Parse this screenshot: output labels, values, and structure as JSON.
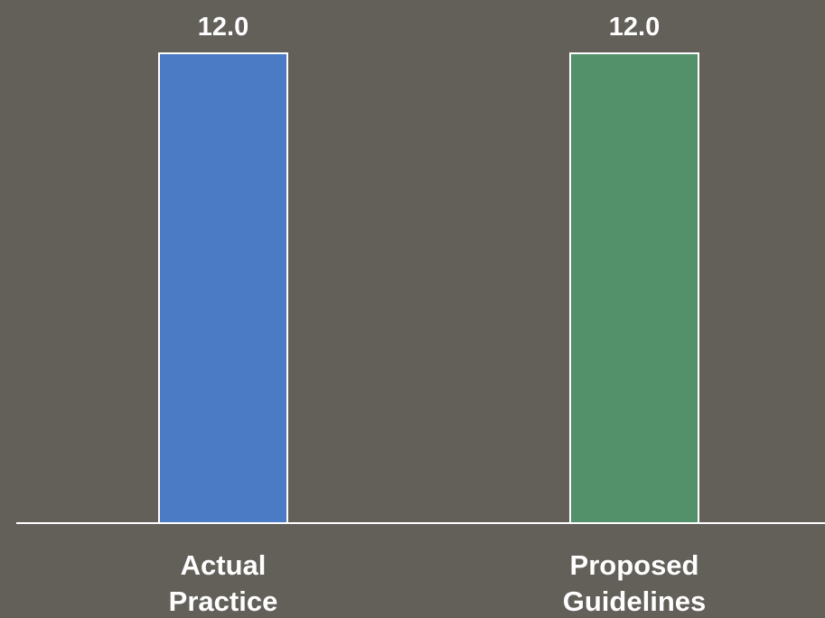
{
  "chart_data": {
    "type": "bar",
    "categories": [
      [
        "Actual",
        "Practice"
      ],
      [
        "Proposed",
        "Guidelines"
      ]
    ],
    "values": [
      12.0,
      12.0
    ],
    "data_labels": [
      "12.0",
      "12.0"
    ],
    "colors": [
      "#4a7bc4",
      "#53916b"
    ],
    "ylim": [
      0,
      12
    ],
    "grid": false,
    "title": "",
    "xlabel": "",
    "ylabel": ""
  },
  "style": {
    "background": "#635f59",
    "axis_color": "#ffffff",
    "text_color": "#ffffff"
  }
}
